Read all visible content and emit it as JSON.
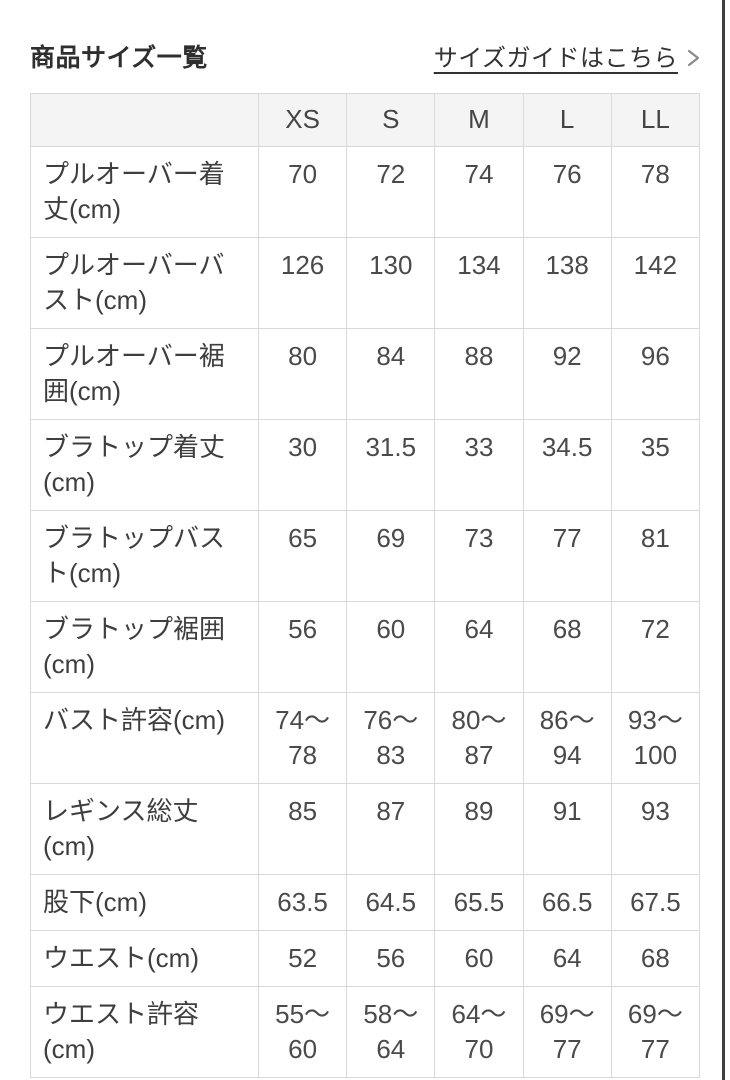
{
  "header": {
    "title": "商品サイズ一覧",
    "size_guide_link": "サイズガイドはこちら"
  },
  "table": {
    "sizes": [
      "XS",
      "S",
      "M",
      "L",
      "LL"
    ],
    "rows": [
      {
        "label": "プルオーバー着丈(cm)",
        "values": [
          "70",
          "72",
          "74",
          "76",
          "78"
        ]
      },
      {
        "label": "プルオーバーバスト(cm)",
        "values": [
          "126",
          "130",
          "134",
          "138",
          "142"
        ]
      },
      {
        "label": "プルオーバー裾囲(cm)",
        "values": [
          "80",
          "84",
          "88",
          "92",
          "96"
        ]
      },
      {
        "label": "ブラトップ着丈(cm)",
        "values": [
          "30",
          "31.5",
          "33",
          "34.5",
          "35"
        ]
      },
      {
        "label": "ブラトップバスト(cm)",
        "values": [
          "65",
          "69",
          "73",
          "77",
          "81"
        ]
      },
      {
        "label": "ブラトップ裾囲(cm)",
        "values": [
          "56",
          "60",
          "64",
          "68",
          "72"
        ]
      },
      {
        "label": "バスト許容(cm)",
        "values": [
          "74〜\n78",
          "76〜\n83",
          "80〜\n87",
          "86〜\n94",
          "93〜\n100"
        ]
      },
      {
        "label": "レギンス総丈(cm)",
        "values": [
          "85",
          "87",
          "89",
          "91",
          "93"
        ]
      },
      {
        "label": "股下(cm)",
        "values": [
          "63.5",
          "64.5",
          "65.5",
          "66.5",
          "67.5"
        ]
      },
      {
        "label": "ウエスト(cm)",
        "values": [
          "52",
          "56",
          "60",
          "64",
          "68"
        ]
      },
      {
        "label": "ウエスト許容(cm)",
        "values": [
          "55〜\n60",
          "58〜\n64",
          "64〜\n70",
          "69〜\n77",
          "69〜\n77"
        ]
      }
    ]
  },
  "colors": {
    "text": "#3e3e3e",
    "value_text": "#4a4a4a",
    "border": "#d9d9d9",
    "header_bg": "#f4f4f4",
    "chevron": "#8a8a8a",
    "edge_line": "#3f3f3f"
  }
}
